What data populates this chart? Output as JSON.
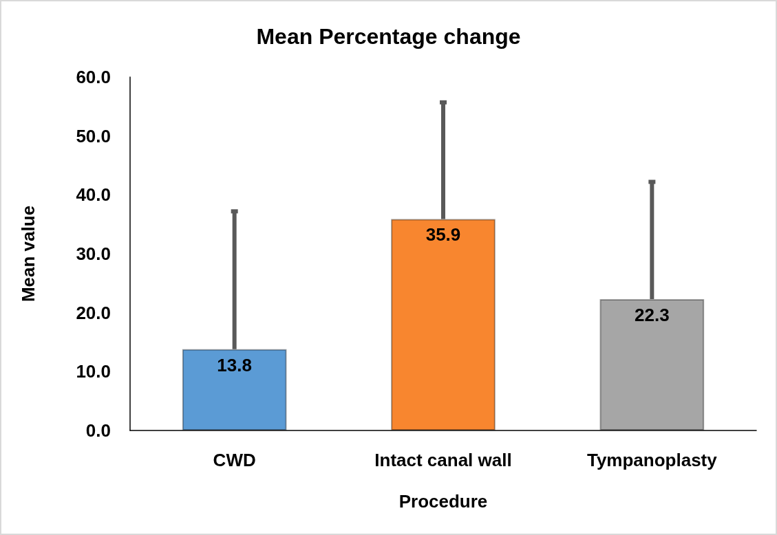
{
  "chart_data": {
    "type": "bar",
    "title": "Mean Percentage change",
    "xlabel": "Procedure",
    "ylabel": "Mean value",
    "categories": [
      "CWD",
      "Intact canal wall",
      "Tympanoplasty"
    ],
    "values": [
      13.8,
      35.9,
      22.3
    ],
    "colors": [
      "#5b9bd5",
      "#f8862f",
      "#a6a6a6"
    ],
    "errors": [
      [
        13.8,
        37.2
      ],
      [
        35.9,
        55.7
      ],
      [
        22.3,
        42.2
      ]
    ],
    "ylim": [
      0,
      60
    ],
    "yticks": [
      {
        "value": 0,
        "label": "0.0"
      },
      {
        "value": 10,
        "label": "10.0"
      },
      {
        "value": 20,
        "label": "20.0"
      },
      {
        "value": 30,
        "label": "30.0"
      },
      {
        "value": 40,
        "label": "40.0"
      },
      {
        "value": 50,
        "label": "50.0"
      },
      {
        "value": 60,
        "label": "60.0"
      }
    ],
    "grid": false,
    "data_labels": true
  }
}
